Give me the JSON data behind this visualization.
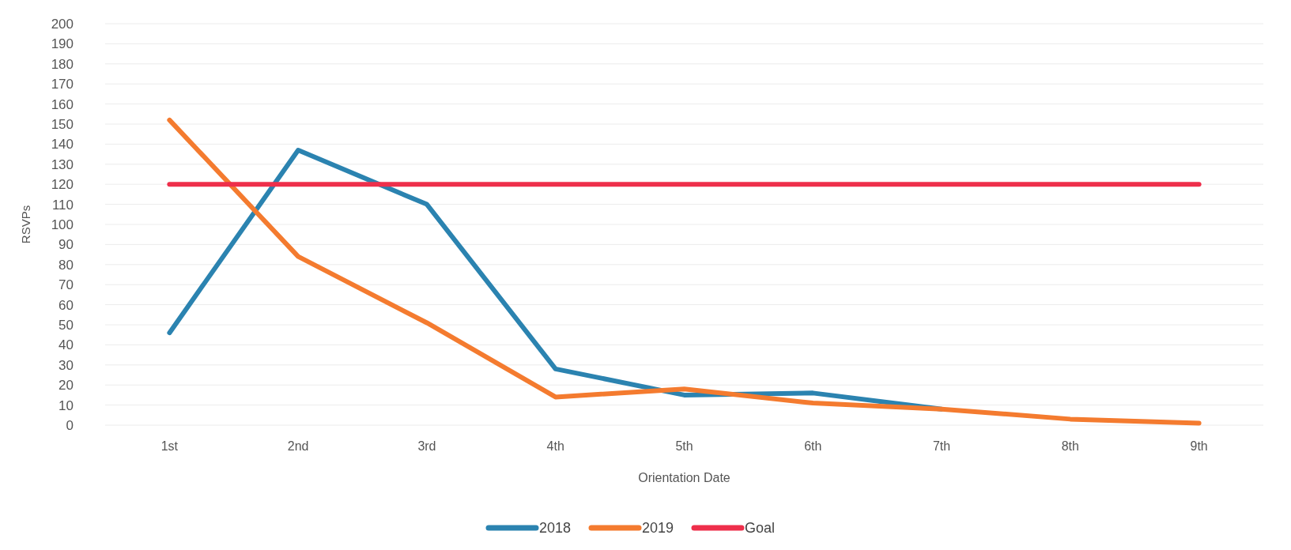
{
  "chart_data": {
    "type": "line",
    "xlabel": "Orientation Date",
    "ylabel": "RSVPs",
    "categories": [
      "1st",
      "2nd",
      "3rd",
      "4th",
      "5th",
      "6th",
      "7th",
      "8th",
      "9th"
    ],
    "series": [
      {
        "name": "2018",
        "color": "#2b83b0",
        "values": [
          46,
          137,
          110,
          28,
          15,
          16,
          8,
          null,
          null
        ]
      },
      {
        "name": "2019",
        "color": "#f47b2f",
        "values": [
          152,
          84,
          51,
          14,
          18,
          11,
          8,
          3,
          1
        ]
      },
      {
        "name": "Goal",
        "color": "#ee2f4b",
        "values": [
          120,
          120,
          120,
          120,
          120,
          120,
          120,
          120,
          120
        ]
      }
    ],
    "ylim": [
      0,
      200
    ],
    "yticks": [
      0,
      10,
      20,
      30,
      40,
      50,
      60,
      70,
      80,
      90,
      100,
      110,
      120,
      130,
      140,
      150,
      160,
      170,
      180,
      190,
      200
    ],
    "grid": "y",
    "legend": "bottom",
    "marker": "none",
    "line_style": "solid"
  }
}
